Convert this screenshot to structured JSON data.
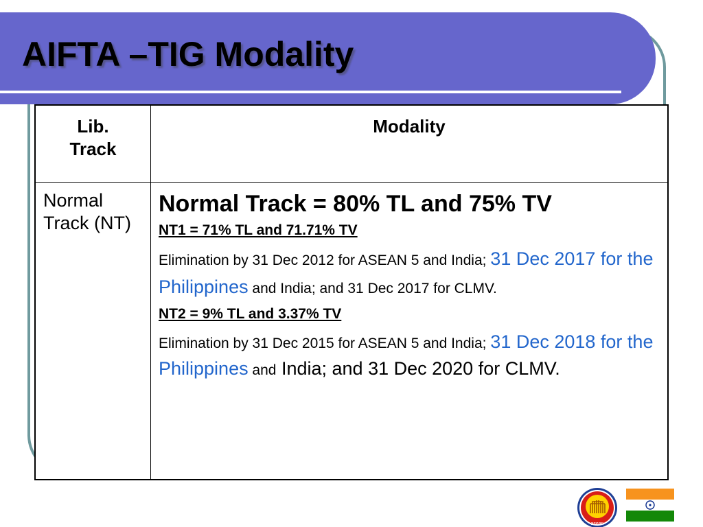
{
  "slide": {
    "title": "AIFTA –TIG Modality"
  },
  "table": {
    "headers": {
      "track": "Lib. Track",
      "modality": "Modality"
    },
    "row": {
      "track": "Normal Track (NT)",
      "heading": "Normal Track = 80% TL and 75% TV",
      "nt1": {
        "title": "NT1 = 71% TL and 71.71% TV",
        "text_a": "Elimination by 31 Dec 2012 for ASEAN 5 and India;",
        "text_b_blue": "31 Dec 2017 for the Philippines",
        "text_c": " and India; and 31 Dec 2017 for CLMV."
      },
      "nt2": {
        "title": "NT2 = 9% TL and 3.37% TV",
        "text_a": "Elimination by 31 Dec 2015 for ASEAN 5 and India;",
        "text_b_blue": "31 Dec 2018 for the Philippines",
        "text_c": " and",
        "text_d": " India; and 31 Dec 2020 for CLMV."
      }
    }
  },
  "logos": {
    "asean_text": "asean",
    "asean_icon": "asean-emblem-icon",
    "india_icon": "india-flag-icon"
  },
  "colors": {
    "title_band": "#6666cc",
    "frame": "#6f9a9e",
    "link_blue": "#2266cc"
  }
}
